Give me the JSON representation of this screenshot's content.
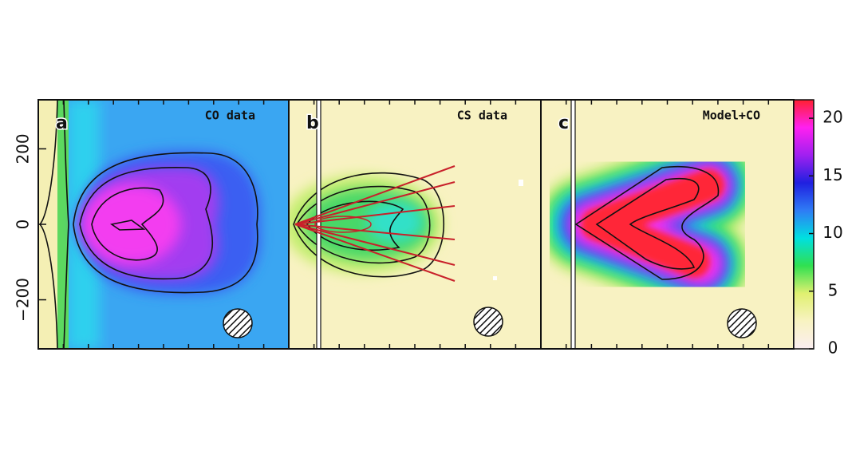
{
  "chart_data": [
    {
      "type": "heatmap",
      "label": "a",
      "title": "CO data",
      "ylim": [
        -330,
        330
      ],
      "yticks": [
        {
          "value": -200,
          "label": "−200"
        },
        0,
        200
      ]
    },
    {
      "type": "heatmap",
      "label": "b",
      "title": "CS data",
      "ylim": [
        -330,
        330
      ]
    },
    {
      "type": "heatmap",
      "label": "c",
      "title": "Model+CO",
      "ylim": [
        -330,
        330
      ],
      "zlim": [
        0,
        21.6
      ],
      "zticks": [
        0,
        5,
        10,
        15,
        20
      ],
      "colormap": [
        "#fbeef0",
        "#f8f3c2",
        "#e0f070",
        "#30e050",
        "#00e0e0",
        "#2f7cf5",
        "#2020e0",
        "#a020f0",
        "#ff20f0",
        "#ff2030"
      ]
    }
  ]
}
